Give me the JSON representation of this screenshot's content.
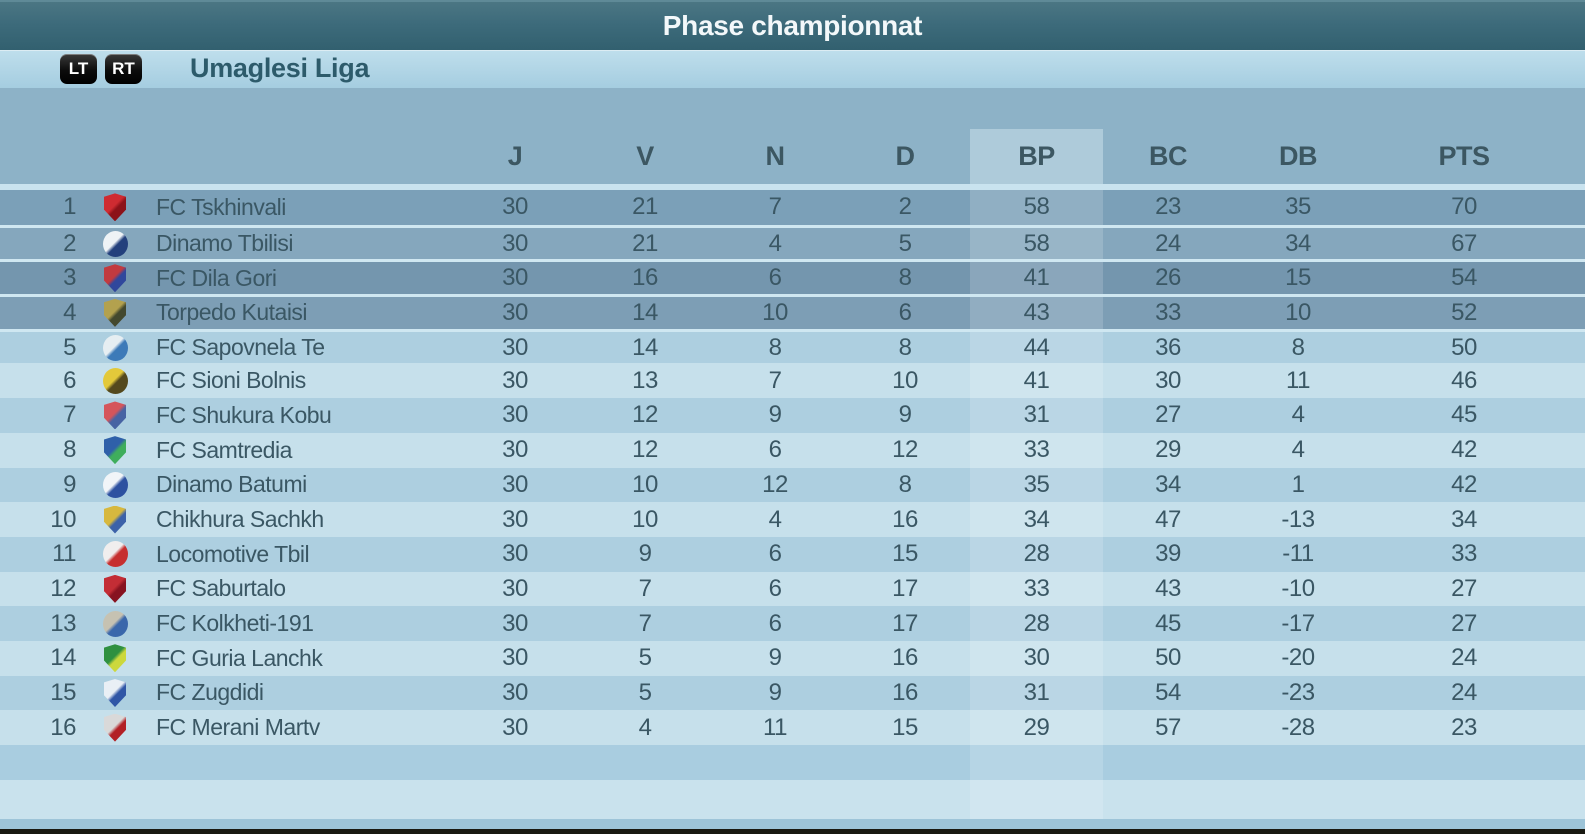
{
  "title_bar": {
    "title": "Phase championnat"
  },
  "subtitle_bar": {
    "lt_button": "LT",
    "rt_button": "RT",
    "league_name": "Umaglesi Liga"
  },
  "table": {
    "columns": [
      "J",
      "V",
      "N",
      "D",
      "BP",
      "BC",
      "DB",
      "PTS"
    ],
    "highlighted_column": "BP",
    "rows": [
      {
        "pos": "1",
        "team": "FC Tskhinvali",
        "badge": {
          "shape": "shield",
          "colors": [
            "#cf2b31",
            "#8c1219"
          ]
        },
        "stats": [
          "30",
          "21",
          "7",
          "2",
          "58",
          "23",
          "35",
          "70"
        ]
      },
      {
        "pos": "2",
        "team": "Dinamo Tbilisi",
        "badge": {
          "shape": "circle",
          "colors": [
            "#eef3f6",
            "#23407c"
          ]
        },
        "stats": [
          "30",
          "21",
          "4",
          "5",
          "58",
          "24",
          "34",
          "67"
        ]
      },
      {
        "pos": "3",
        "team": "FC Dila Gori",
        "badge": {
          "shape": "shield",
          "colors": [
            "#c23a3f",
            "#30479c"
          ]
        },
        "stats": [
          "30",
          "16",
          "6",
          "8",
          "41",
          "26",
          "15",
          "54"
        ]
      },
      {
        "pos": "4",
        "team": "Torpedo Kutaisi",
        "badge": {
          "shape": "shield",
          "colors": [
            "#b3a14e",
            "#43482e"
          ]
        },
        "stats": [
          "30",
          "14",
          "10",
          "6",
          "43",
          "33",
          "10",
          "52"
        ]
      },
      {
        "pos": "5",
        "team": "FC Sapovnela Te",
        "badge": {
          "shape": "circle",
          "colors": [
            "#e6eef2",
            "#3d7ab8"
          ]
        },
        "stats": [
          "30",
          "14",
          "8",
          "8",
          "44",
          "36",
          "8",
          "50"
        ]
      },
      {
        "pos": "6",
        "team": "FC Sioni Bolnis",
        "badge": {
          "shape": "circle",
          "colors": [
            "#e3c93a",
            "#54491d"
          ]
        },
        "stats": [
          "30",
          "13",
          "7",
          "10",
          "41",
          "30",
          "11",
          "46"
        ]
      },
      {
        "pos": "7",
        "team": "FC Shukura Kobu",
        "badge": {
          "shape": "shield",
          "colors": [
            "#d5555b",
            "#4763a3"
          ]
        },
        "stats": [
          "30",
          "12",
          "9",
          "9",
          "31",
          "27",
          "4",
          "45"
        ]
      },
      {
        "pos": "8",
        "team": "FC Samtredia",
        "badge": {
          "shape": "shield",
          "colors": [
            "#2f60a9",
            "#3fae5c"
          ]
        },
        "stats": [
          "30",
          "12",
          "6",
          "12",
          "33",
          "29",
          "4",
          "42"
        ]
      },
      {
        "pos": "9",
        "team": "Dinamo Batumi",
        "badge": {
          "shape": "circle",
          "colors": [
            "#f1f5f8",
            "#2d51a0"
          ]
        },
        "stats": [
          "30",
          "10",
          "12",
          "8",
          "35",
          "34",
          "1",
          "42"
        ]
      },
      {
        "pos": "10",
        "team": "Chikhura Sachkh",
        "badge": {
          "shape": "shield",
          "colors": [
            "#d7b83e",
            "#3c62a9"
          ]
        },
        "stats": [
          "30",
          "10",
          "4",
          "16",
          "34",
          "47",
          "-13",
          "34"
        ]
      },
      {
        "pos": "11",
        "team": "Locomotive Tbil",
        "badge": {
          "shape": "circle",
          "colors": [
            "#f0eeee",
            "#c62f2f"
          ]
        },
        "stats": [
          "30",
          "9",
          "6",
          "15",
          "28",
          "39",
          "-11",
          "33"
        ]
      },
      {
        "pos": "12",
        "team": "FC Saburtalo",
        "badge": {
          "shape": "shield",
          "colors": [
            "#c32d35",
            "#871320"
          ]
        },
        "stats": [
          "30",
          "7",
          "6",
          "17",
          "33",
          "43",
          "-10",
          "27"
        ]
      },
      {
        "pos": "13",
        "team": "FC Kolkheti-191",
        "badge": {
          "shape": "circle",
          "colors": [
            "#c6c2b2",
            "#3a67ab"
          ]
        },
        "stats": [
          "30",
          "7",
          "6",
          "17",
          "28",
          "45",
          "-17",
          "27"
        ]
      },
      {
        "pos": "14",
        "team": "FC Guria Lanchk",
        "badge": {
          "shape": "shield",
          "colors": [
            "#2f9040",
            "#ccd83c"
          ]
        },
        "stats": [
          "30",
          "5",
          "9",
          "16",
          "30",
          "50",
          "-20",
          "24"
        ]
      },
      {
        "pos": "15",
        "team": "FC Zugdidi",
        "badge": {
          "shape": "shield",
          "colors": [
            "#e9eff5",
            "#3056a6"
          ]
        },
        "stats": [
          "30",
          "5",
          "9",
          "16",
          "31",
          "54",
          "-23",
          "24"
        ]
      },
      {
        "pos": "16",
        "team": "FC Merani Martv",
        "badge": {
          "shape": "shield",
          "colors": [
            "#d9d9d9",
            "#b22025"
          ]
        },
        "stats": [
          "30",
          "4",
          "11",
          "15",
          "29",
          "57",
          "-28",
          "23"
        ]
      }
    ]
  },
  "colors": {
    "title_bar": "#3d6b7b",
    "subtitle_bar": "#b2d6e6",
    "header_band": "#8db2c7",
    "top4_row": "#7b9fb7",
    "row_odd": "#adcfe0",
    "row_even": "#c6e0eb",
    "bp_column_highlight": "#aecbda",
    "text_dark": "#3a5764",
    "title_text": "#f3f8fa"
  }
}
